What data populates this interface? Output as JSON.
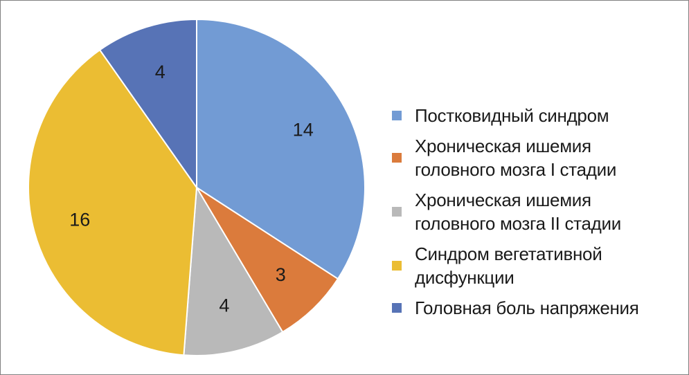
{
  "chart_data": {
    "type": "pie",
    "title": "",
    "start_angle_deg": 0,
    "direction": "clockwise",
    "legend_position": "right",
    "slices": [
      {
        "label": "Постковидный синдром",
        "value": 14,
        "color": "#729bd4"
      },
      {
        "label": "Хроническая ишемия головного мозга I стадии",
        "value": 3,
        "color": "#db7b3c"
      },
      {
        "label": "Хроническая ишемия головного мозга II стадии",
        "value": 4,
        "color": "#b9b9b9"
      },
      {
        "label": "Синдром вегетативной дисфункции",
        "value": 16,
        "color": "#ebbd33"
      },
      {
        "label": "Головная боль напряжения",
        "value": 4,
        "color": "#5773b6"
      }
    ]
  }
}
